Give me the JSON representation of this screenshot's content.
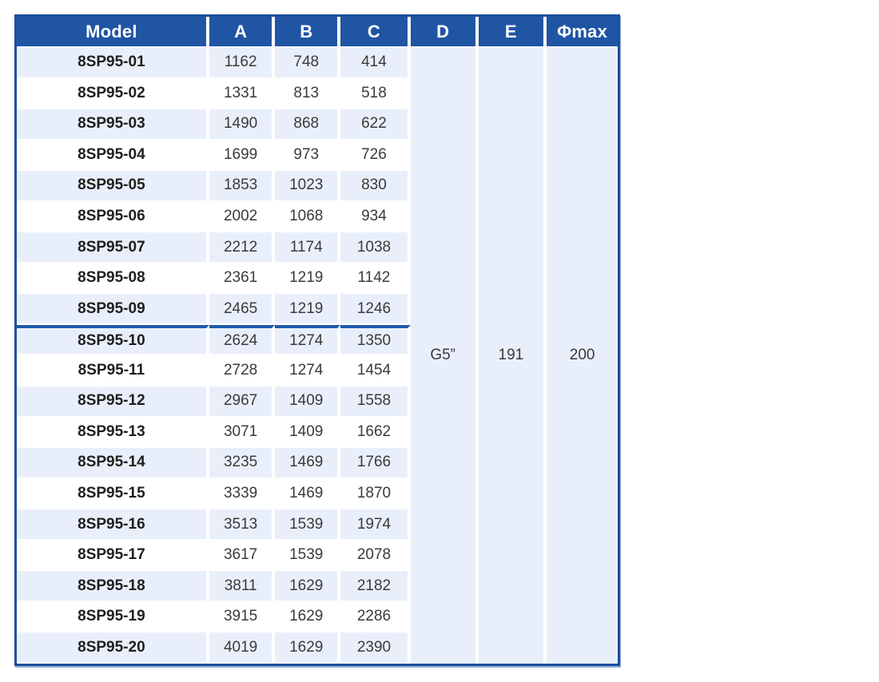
{
  "table": {
    "headers": [
      {
        "label": "Model"
      },
      {
        "label": "A"
      },
      {
        "label": "B"
      },
      {
        "label": "C"
      },
      {
        "label": "D"
      },
      {
        "label": "E"
      },
      {
        "label": "Φmax"
      }
    ],
    "rows": [
      {
        "model": "8SP95-01",
        "a": "1162",
        "b": "748",
        "c": "414"
      },
      {
        "model": "8SP95-02",
        "a": "1331",
        "b": "813",
        "c": "518"
      },
      {
        "model": "8SP95-03",
        "a": "1490",
        "b": "868",
        "c": "622"
      },
      {
        "model": "8SP95-04",
        "a": "1699",
        "b": "973",
        "c": "726"
      },
      {
        "model": "8SP95-05",
        "a": "1853",
        "b": "1023",
        "c": "830"
      },
      {
        "model": "8SP95-06",
        "a": "2002",
        "b": "1068",
        "c": "934"
      },
      {
        "model": "8SP95-07",
        "a": "2212",
        "b": "1174",
        "c": "1038"
      },
      {
        "model": "8SP95-08",
        "a": "2361",
        "b": "1219",
        "c": "1142"
      },
      {
        "model": "8SP95-09",
        "a": "2465",
        "b": "1219",
        "c": "1246"
      },
      {
        "model": "8SP95-10",
        "a": "2624",
        "b": "1274",
        "c": "1350"
      },
      {
        "model": "8SP95-11",
        "a": "2728",
        "b": "1274",
        "c": "1454"
      },
      {
        "model": "8SP95-12",
        "a": "2967",
        "b": "1409",
        "c": "1558"
      },
      {
        "model": "8SP95-13",
        "a": "3071",
        "b": "1409",
        "c": "1662"
      },
      {
        "model": "8SP95-14",
        "a": "3235",
        "b": "1469",
        "c": "1766"
      },
      {
        "model": "8SP95-15",
        "a": "3339",
        "b": "1469",
        "c": "1870"
      },
      {
        "model": "8SP95-16",
        "a": "3513",
        "b": "1539",
        "c": "1974"
      },
      {
        "model": "8SP95-17",
        "a": "3617",
        "b": "1539",
        "c": "2078"
      },
      {
        "model": "8SP95-18",
        "a": "3811",
        "b": "1629",
        "c": "2182"
      },
      {
        "model": "8SP95-19",
        "a": "3915",
        "b": "1629",
        "c": "2286"
      },
      {
        "model": "8SP95-20",
        "a": "4019",
        "b": "1629",
        "c": "2390"
      }
    ],
    "divider_before_row_index": 9,
    "merged": {
      "d": "G5”",
      "e": "191",
      "phimax": "200"
    },
    "colors": {
      "header_bg": "#2055a4",
      "outer_border": "#1a4e9e",
      "stripe_bg": "#e9effa",
      "divider_line": "#1e5aab",
      "header_text": "#ffffff",
      "body_text": "#3a3a3a"
    }
  }
}
